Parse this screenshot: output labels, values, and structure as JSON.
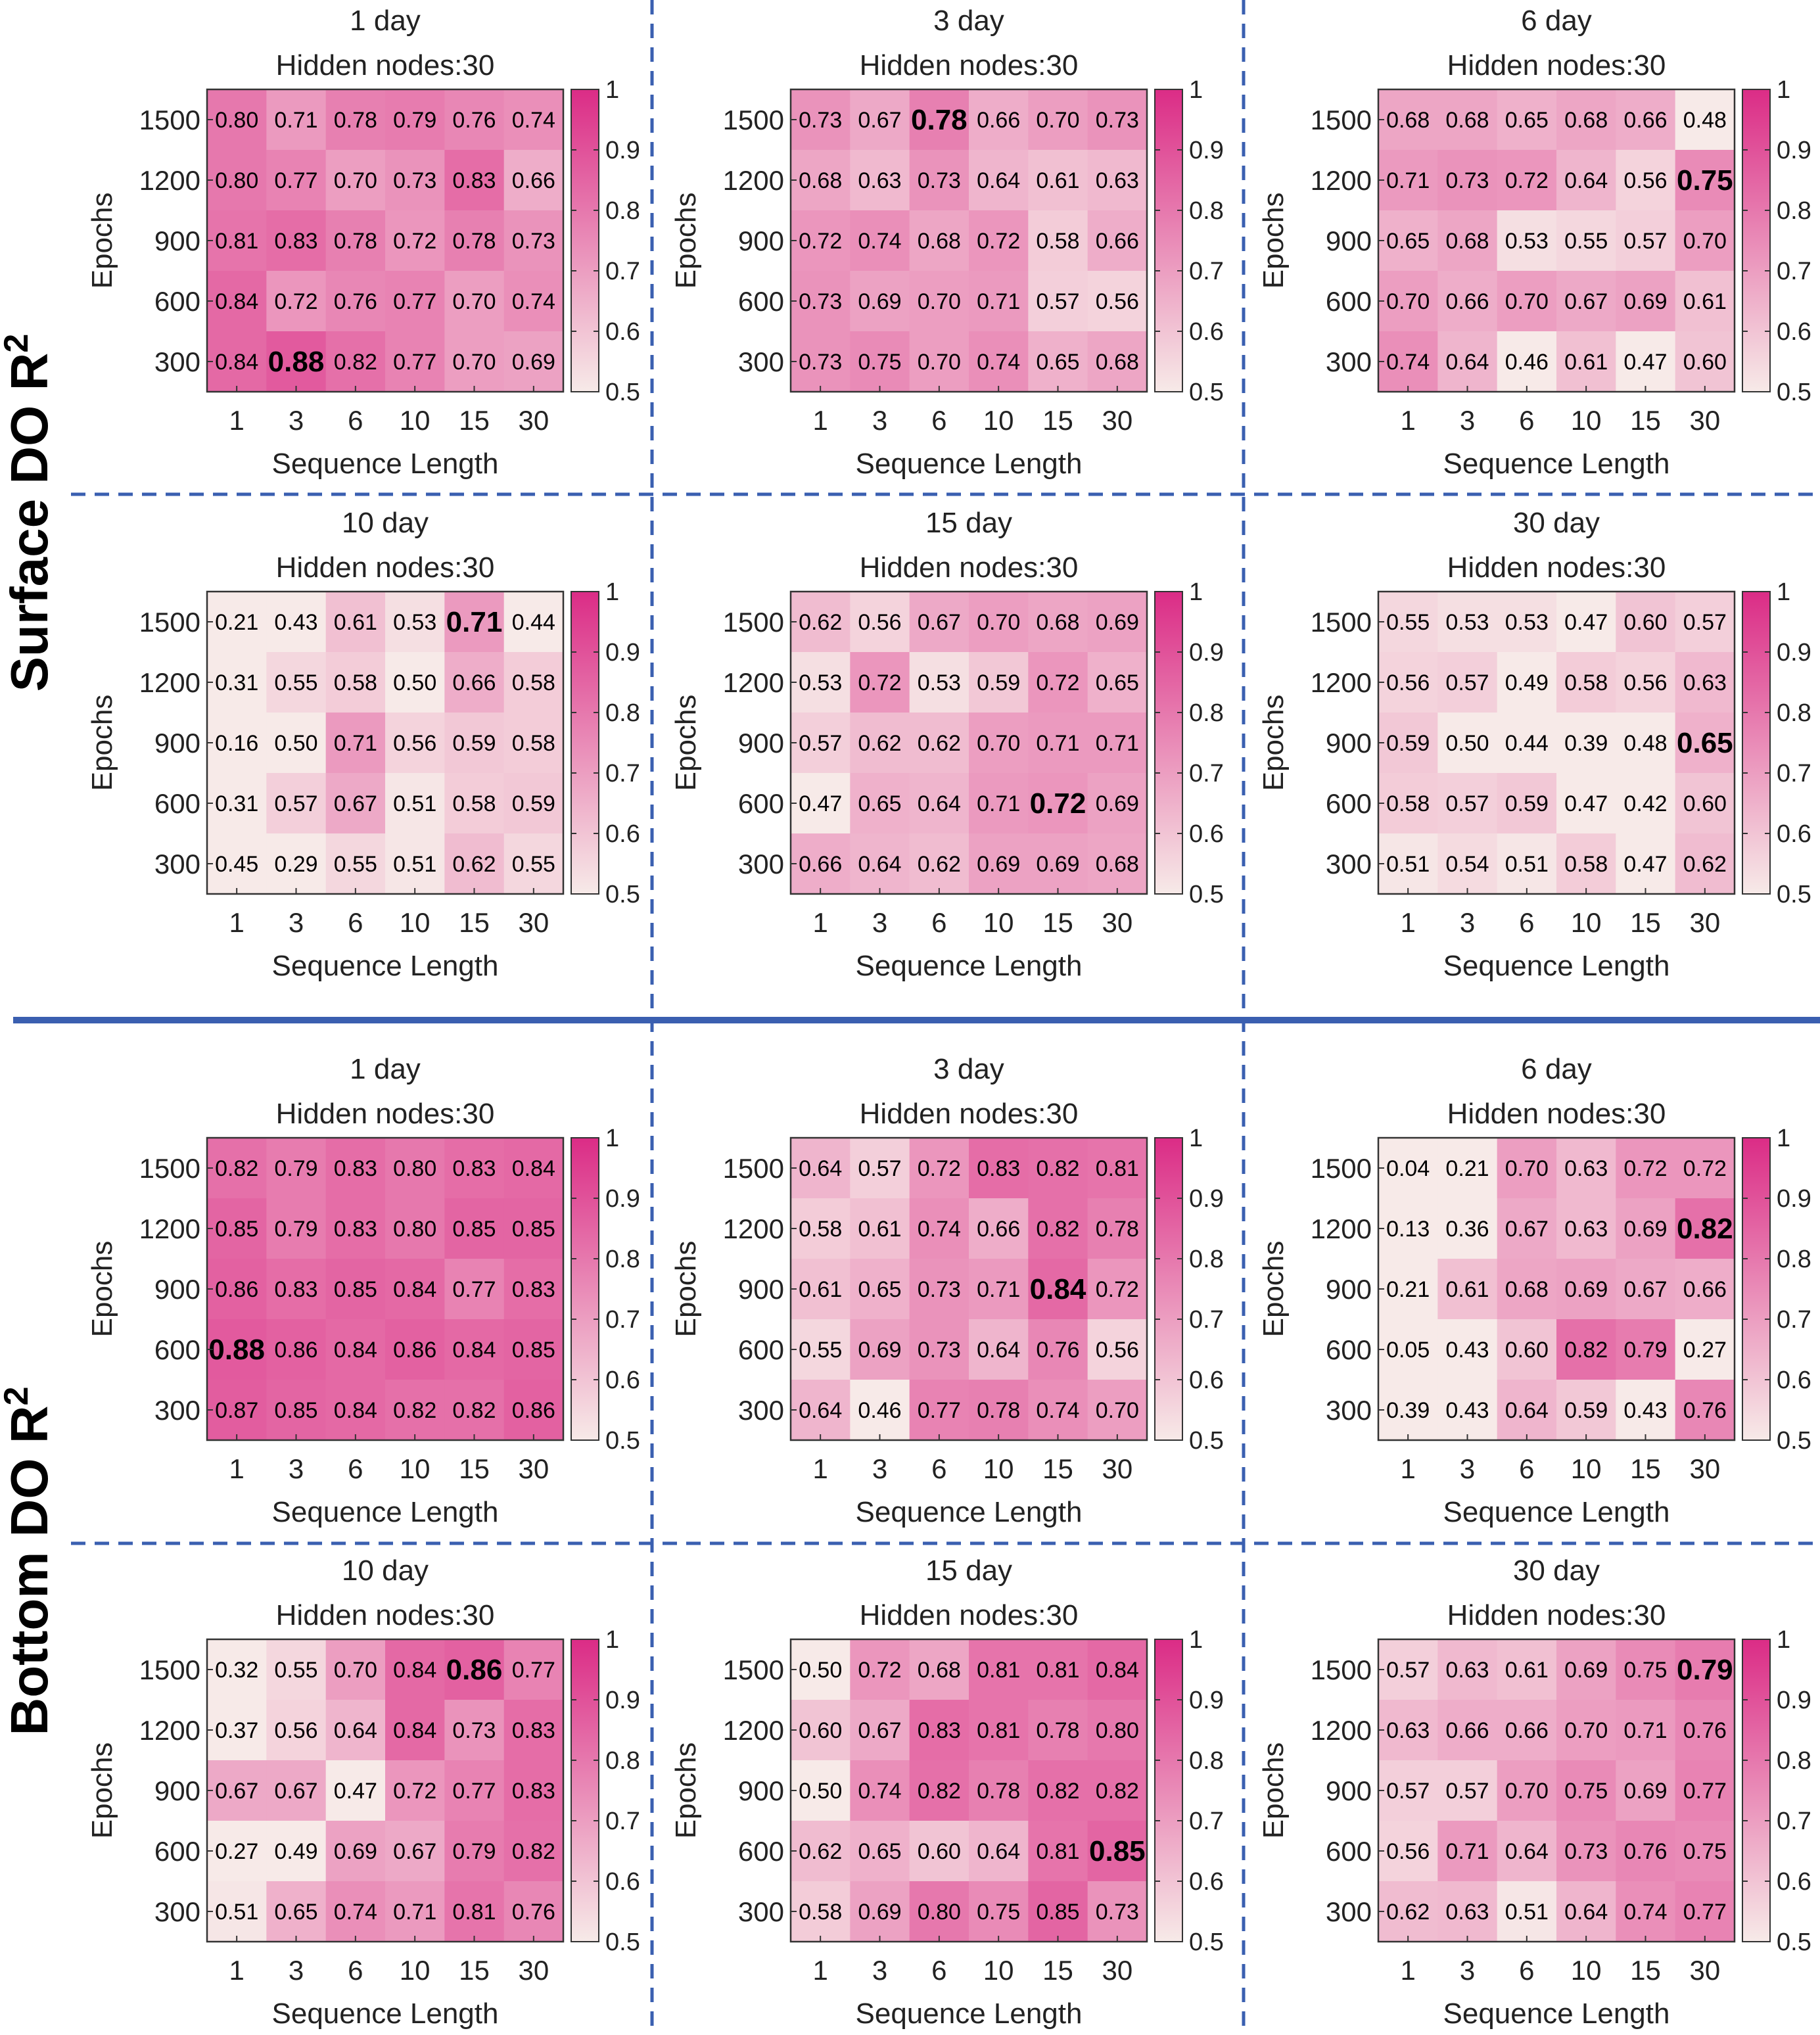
{
  "sections": [
    {
      "label": "Surface DO R",
      "sup": "2"
    },
    {
      "label": "Bottom DO R",
      "sup": "2"
    }
  ],
  "colors": {
    "low": "#f7eae8",
    "high": "#db2c86",
    "divider": "#3a5fb0",
    "text": "#222222"
  },
  "chart_data": [
    {
      "type": "heatmap",
      "section": "Surface DO R2",
      "title": "1 day",
      "subtitle": "Hidden nodes:30",
      "xlabel": "Sequence Length",
      "ylabel": "Epochs",
      "x": [
        "1",
        "3",
        "6",
        "10",
        "15",
        "30"
      ],
      "y": [
        "1500",
        "1200",
        "900",
        "600",
        "300"
      ],
      "colorbar": {
        "range": [
          0.5,
          1
        ],
        "ticks": [
          "1",
          "0.9",
          "0.8",
          "0.7",
          "0.6",
          "0.5"
        ]
      },
      "values": [
        [
          0.8,
          0.71,
          0.78,
          0.79,
          0.76,
          0.74
        ],
        [
          0.8,
          0.77,
          0.7,
          0.73,
          0.83,
          0.66
        ],
        [
          0.81,
          0.83,
          0.78,
          0.72,
          0.78,
          0.73
        ],
        [
          0.84,
          0.72,
          0.76,
          0.77,
          0.7,
          0.74
        ],
        [
          0.84,
          0.88,
          0.82,
          0.77,
          0.7,
          0.69
        ]
      ],
      "best": [
        4,
        1
      ]
    },
    {
      "type": "heatmap",
      "section": "Surface DO R2",
      "title": "3 day",
      "subtitle": "Hidden nodes:30",
      "xlabel": "Sequence Length",
      "ylabel": "Epochs",
      "x": [
        "1",
        "3",
        "6",
        "10",
        "15",
        "30"
      ],
      "y": [
        "1500",
        "1200",
        "900",
        "600",
        "300"
      ],
      "colorbar": {
        "range": [
          0.5,
          1
        ],
        "ticks": [
          "1",
          "0.9",
          "0.8",
          "0.7",
          "0.6",
          "0.5"
        ]
      },
      "values": [
        [
          0.73,
          0.67,
          0.78,
          0.66,
          0.7,
          0.73
        ],
        [
          0.68,
          0.63,
          0.73,
          0.64,
          0.61,
          0.63
        ],
        [
          0.72,
          0.74,
          0.68,
          0.72,
          0.58,
          0.66
        ],
        [
          0.73,
          0.69,
          0.7,
          0.71,
          0.57,
          0.56
        ],
        [
          0.73,
          0.75,
          0.7,
          0.74,
          0.65,
          0.68
        ]
      ],
      "best": [
        0,
        2
      ]
    },
    {
      "type": "heatmap",
      "section": "Surface DO R2",
      "title": "6 day",
      "subtitle": "Hidden nodes:30",
      "xlabel": "Sequence Length",
      "ylabel": "Epochs",
      "x": [
        "1",
        "3",
        "6",
        "10",
        "15",
        "30"
      ],
      "y": [
        "1500",
        "1200",
        "900",
        "600",
        "300"
      ],
      "colorbar": {
        "range": [
          0.5,
          1
        ],
        "ticks": [
          "1",
          "0.9",
          "0.8",
          "0.7",
          "0.6",
          "0.5"
        ]
      },
      "values": [
        [
          0.68,
          0.68,
          0.65,
          0.68,
          0.66,
          0.48
        ],
        [
          0.71,
          0.73,
          0.72,
          0.64,
          0.56,
          0.75
        ],
        [
          0.65,
          0.68,
          0.53,
          0.55,
          0.57,
          0.7
        ],
        [
          0.7,
          0.66,
          0.7,
          0.67,
          0.69,
          0.61
        ],
        [
          0.74,
          0.64,
          0.46,
          0.61,
          0.47,
          0.6
        ]
      ],
      "best": [
        1,
        5
      ]
    },
    {
      "type": "heatmap",
      "section": "Surface DO R2",
      "title": "10 day",
      "subtitle": "Hidden nodes:30",
      "xlabel": "Sequence Length",
      "ylabel": "Epochs",
      "x": [
        "1",
        "3",
        "6",
        "10",
        "15",
        "30"
      ],
      "y": [
        "1500",
        "1200",
        "900",
        "600",
        "300"
      ],
      "colorbar": {
        "range": [
          0.5,
          1
        ],
        "ticks": [
          "1",
          "0.9",
          "0.8",
          "0.7",
          "0.6",
          "0.5"
        ]
      },
      "values": [
        [
          0.21,
          0.43,
          0.61,
          0.53,
          0.71,
          0.44
        ],
        [
          0.31,
          0.55,
          0.58,
          0.5,
          0.66,
          0.58
        ],
        [
          0.16,
          0.5,
          0.71,
          0.56,
          0.59,
          0.58
        ],
        [
          0.31,
          0.57,
          0.67,
          0.51,
          0.58,
          0.59
        ],
        [
          0.45,
          0.29,
          0.55,
          0.51,
          0.62,
          0.55
        ]
      ],
      "best": [
        0,
        4
      ]
    },
    {
      "type": "heatmap",
      "section": "Surface DO R2",
      "title": "15 day",
      "subtitle": "Hidden nodes:30",
      "xlabel": "Sequence Length",
      "ylabel": "Epochs",
      "x": [
        "1",
        "3",
        "6",
        "10",
        "15",
        "30"
      ],
      "y": [
        "1500",
        "1200",
        "900",
        "600",
        "300"
      ],
      "colorbar": {
        "range": [
          0.5,
          1
        ],
        "ticks": [
          "1",
          "0.9",
          "0.8",
          "0.7",
          "0.6",
          "0.5"
        ]
      },
      "values": [
        [
          0.62,
          0.56,
          0.67,
          0.7,
          0.68,
          0.69
        ],
        [
          0.53,
          0.72,
          0.53,
          0.59,
          0.72,
          0.65
        ],
        [
          0.57,
          0.62,
          0.62,
          0.7,
          0.71,
          0.71
        ],
        [
          0.47,
          0.65,
          0.64,
          0.71,
          0.72,
          0.69
        ],
        [
          0.66,
          0.64,
          0.62,
          0.69,
          0.69,
          0.68
        ]
      ],
      "best": [
        3,
        4
      ]
    },
    {
      "type": "heatmap",
      "section": "Surface DO R2",
      "title": "30 day",
      "subtitle": "Hidden nodes:30",
      "xlabel": "Sequence Length",
      "ylabel": "Epochs",
      "x": [
        "1",
        "3",
        "6",
        "10",
        "15",
        "30"
      ],
      "y": [
        "1500",
        "1200",
        "900",
        "600",
        "300"
      ],
      "colorbar": {
        "range": [
          0.5,
          1
        ],
        "ticks": [
          "1",
          "0.9",
          "0.8",
          "0.7",
          "0.6",
          "0.5"
        ]
      },
      "values": [
        [
          0.55,
          0.53,
          0.53,
          0.47,
          0.6,
          0.57
        ],
        [
          0.56,
          0.57,
          0.49,
          0.58,
          0.56,
          0.63
        ],
        [
          0.59,
          0.5,
          0.44,
          0.39,
          0.48,
          0.65
        ],
        [
          0.58,
          0.57,
          0.59,
          0.47,
          0.42,
          0.6
        ],
        [
          0.51,
          0.54,
          0.51,
          0.58,
          0.47,
          0.62
        ]
      ],
      "best": [
        2,
        5
      ]
    },
    {
      "type": "heatmap",
      "section": "Bottom DO R2",
      "title": "1 day",
      "subtitle": "Hidden nodes:30",
      "xlabel": "Sequence Length",
      "ylabel": "Epochs",
      "x": [
        "1",
        "3",
        "6",
        "10",
        "15",
        "30"
      ],
      "y": [
        "1500",
        "1200",
        "900",
        "600",
        "300"
      ],
      "colorbar": {
        "range": [
          0.5,
          1
        ],
        "ticks": [
          "1",
          "0.9",
          "0.8",
          "0.7",
          "0.6",
          "0.5"
        ]
      },
      "values": [
        [
          0.82,
          0.79,
          0.83,
          0.8,
          0.83,
          0.84
        ],
        [
          0.85,
          0.79,
          0.83,
          0.8,
          0.85,
          0.85
        ],
        [
          0.86,
          0.83,
          0.85,
          0.84,
          0.77,
          0.83
        ],
        [
          0.88,
          0.86,
          0.84,
          0.86,
          0.84,
          0.85
        ],
        [
          0.87,
          0.85,
          0.84,
          0.82,
          0.82,
          0.86
        ]
      ],
      "best": [
        3,
        0
      ]
    },
    {
      "type": "heatmap",
      "section": "Bottom DO R2",
      "title": "3 day",
      "subtitle": "Hidden nodes:30",
      "xlabel": "Sequence Length",
      "ylabel": "Epochs",
      "x": [
        "1",
        "3",
        "6",
        "10",
        "15",
        "30"
      ],
      "y": [
        "1500",
        "1200",
        "900",
        "600",
        "300"
      ],
      "colorbar": {
        "range": [
          0.5,
          1
        ],
        "ticks": [
          "1",
          "0.9",
          "0.8",
          "0.7",
          "0.6",
          "0.5"
        ]
      },
      "values": [
        [
          0.64,
          0.57,
          0.72,
          0.83,
          0.82,
          0.81
        ],
        [
          0.58,
          0.61,
          0.74,
          0.66,
          0.82,
          0.78
        ],
        [
          0.61,
          0.65,
          0.73,
          0.71,
          0.84,
          0.72
        ],
        [
          0.55,
          0.69,
          0.73,
          0.64,
          0.76,
          0.56
        ],
        [
          0.64,
          0.46,
          0.77,
          0.78,
          0.74,
          0.7
        ]
      ],
      "best": [
        2,
        4
      ]
    },
    {
      "type": "heatmap",
      "section": "Bottom DO R2",
      "title": "6 day",
      "subtitle": "Hidden nodes:30",
      "xlabel": "Sequence Length",
      "ylabel": "Epochs",
      "x": [
        "1",
        "3",
        "6",
        "10",
        "15",
        "30"
      ],
      "y": [
        "1500",
        "1200",
        "900",
        "600",
        "300"
      ],
      "colorbar": {
        "range": [
          0.5,
          1
        ],
        "ticks": [
          "1",
          "0.9",
          "0.8",
          "0.7",
          "0.6",
          "0.5"
        ]
      },
      "values": [
        [
          0.04,
          0.21,
          0.7,
          0.63,
          0.72,
          0.72
        ],
        [
          0.13,
          0.36,
          0.67,
          0.63,
          0.69,
          0.82
        ],
        [
          0.21,
          0.61,
          0.68,
          0.69,
          0.67,
          0.66
        ],
        [
          0.05,
          0.43,
          0.6,
          0.82,
          0.79,
          0.27
        ],
        [
          0.39,
          0.43,
          0.64,
          0.59,
          0.43,
          0.76
        ]
      ],
      "best": [
        1,
        5
      ]
    },
    {
      "type": "heatmap",
      "section": "Bottom DO R2",
      "title": "10 day",
      "subtitle": "Hidden nodes:30",
      "xlabel": "Sequence Length",
      "ylabel": "Epochs",
      "x": [
        "1",
        "3",
        "6",
        "10",
        "15",
        "30"
      ],
      "y": [
        "1500",
        "1200",
        "900",
        "600",
        "300"
      ],
      "colorbar": {
        "range": [
          0.5,
          1
        ],
        "ticks": [
          "1",
          "0.9",
          "0.8",
          "0.7",
          "0.6",
          "0.5"
        ]
      },
      "values": [
        [
          0.32,
          0.55,
          0.7,
          0.84,
          0.86,
          0.77
        ],
        [
          0.37,
          0.56,
          0.64,
          0.84,
          0.73,
          0.83
        ],
        [
          0.67,
          0.67,
          0.47,
          0.72,
          0.77,
          0.83
        ],
        [
          0.27,
          0.49,
          0.69,
          0.67,
          0.79,
          0.82
        ],
        [
          0.51,
          0.65,
          0.74,
          0.71,
          0.81,
          0.76
        ]
      ],
      "best": [
        0,
        4
      ]
    },
    {
      "type": "heatmap",
      "section": "Bottom DO R2",
      "title": "15 day",
      "subtitle": "Hidden nodes:30",
      "xlabel": "Sequence Length",
      "ylabel": "Epochs",
      "x": [
        "1",
        "3",
        "6",
        "10",
        "15",
        "30"
      ],
      "y": [
        "1500",
        "1200",
        "900",
        "600",
        "300"
      ],
      "colorbar": {
        "range": [
          0.5,
          1
        ],
        "ticks": [
          "1",
          "0.9",
          "0.8",
          "0.7",
          "0.6",
          "0.5"
        ]
      },
      "values": [
        [
          0.5,
          0.72,
          0.68,
          0.81,
          0.81,
          0.84
        ],
        [
          0.6,
          0.67,
          0.83,
          0.81,
          0.78,
          0.8
        ],
        [
          0.5,
          0.74,
          0.82,
          0.78,
          0.82,
          0.82
        ],
        [
          0.62,
          0.65,
          0.6,
          0.64,
          0.81,
          0.85
        ],
        [
          0.58,
          0.69,
          0.8,
          0.75,
          0.85,
          0.73
        ]
      ],
      "best": [
        3,
        5
      ]
    },
    {
      "type": "heatmap",
      "section": "Bottom DO R2",
      "title": "30 day",
      "subtitle": "Hidden nodes:30",
      "xlabel": "Sequence Length",
      "ylabel": "Epochs",
      "x": [
        "1",
        "3",
        "6",
        "10",
        "15",
        "30"
      ],
      "y": [
        "1500",
        "1200",
        "900",
        "600",
        "300"
      ],
      "colorbar": {
        "range": [
          0.5,
          1
        ],
        "ticks": [
          "1",
          "0.9",
          "0.8",
          "0.7",
          "0.6",
          "0.5"
        ]
      },
      "values": [
        [
          0.57,
          0.63,
          0.61,
          0.69,
          0.75,
          0.79
        ],
        [
          0.63,
          0.66,
          0.66,
          0.7,
          0.71,
          0.76
        ],
        [
          0.57,
          0.57,
          0.7,
          0.75,
          0.69,
          0.77
        ],
        [
          0.56,
          0.71,
          0.64,
          0.73,
          0.76,
          0.75
        ],
        [
          0.62,
          0.63,
          0.51,
          0.64,
          0.74,
          0.77
        ]
      ],
      "best": [
        0,
        5
      ]
    }
  ]
}
